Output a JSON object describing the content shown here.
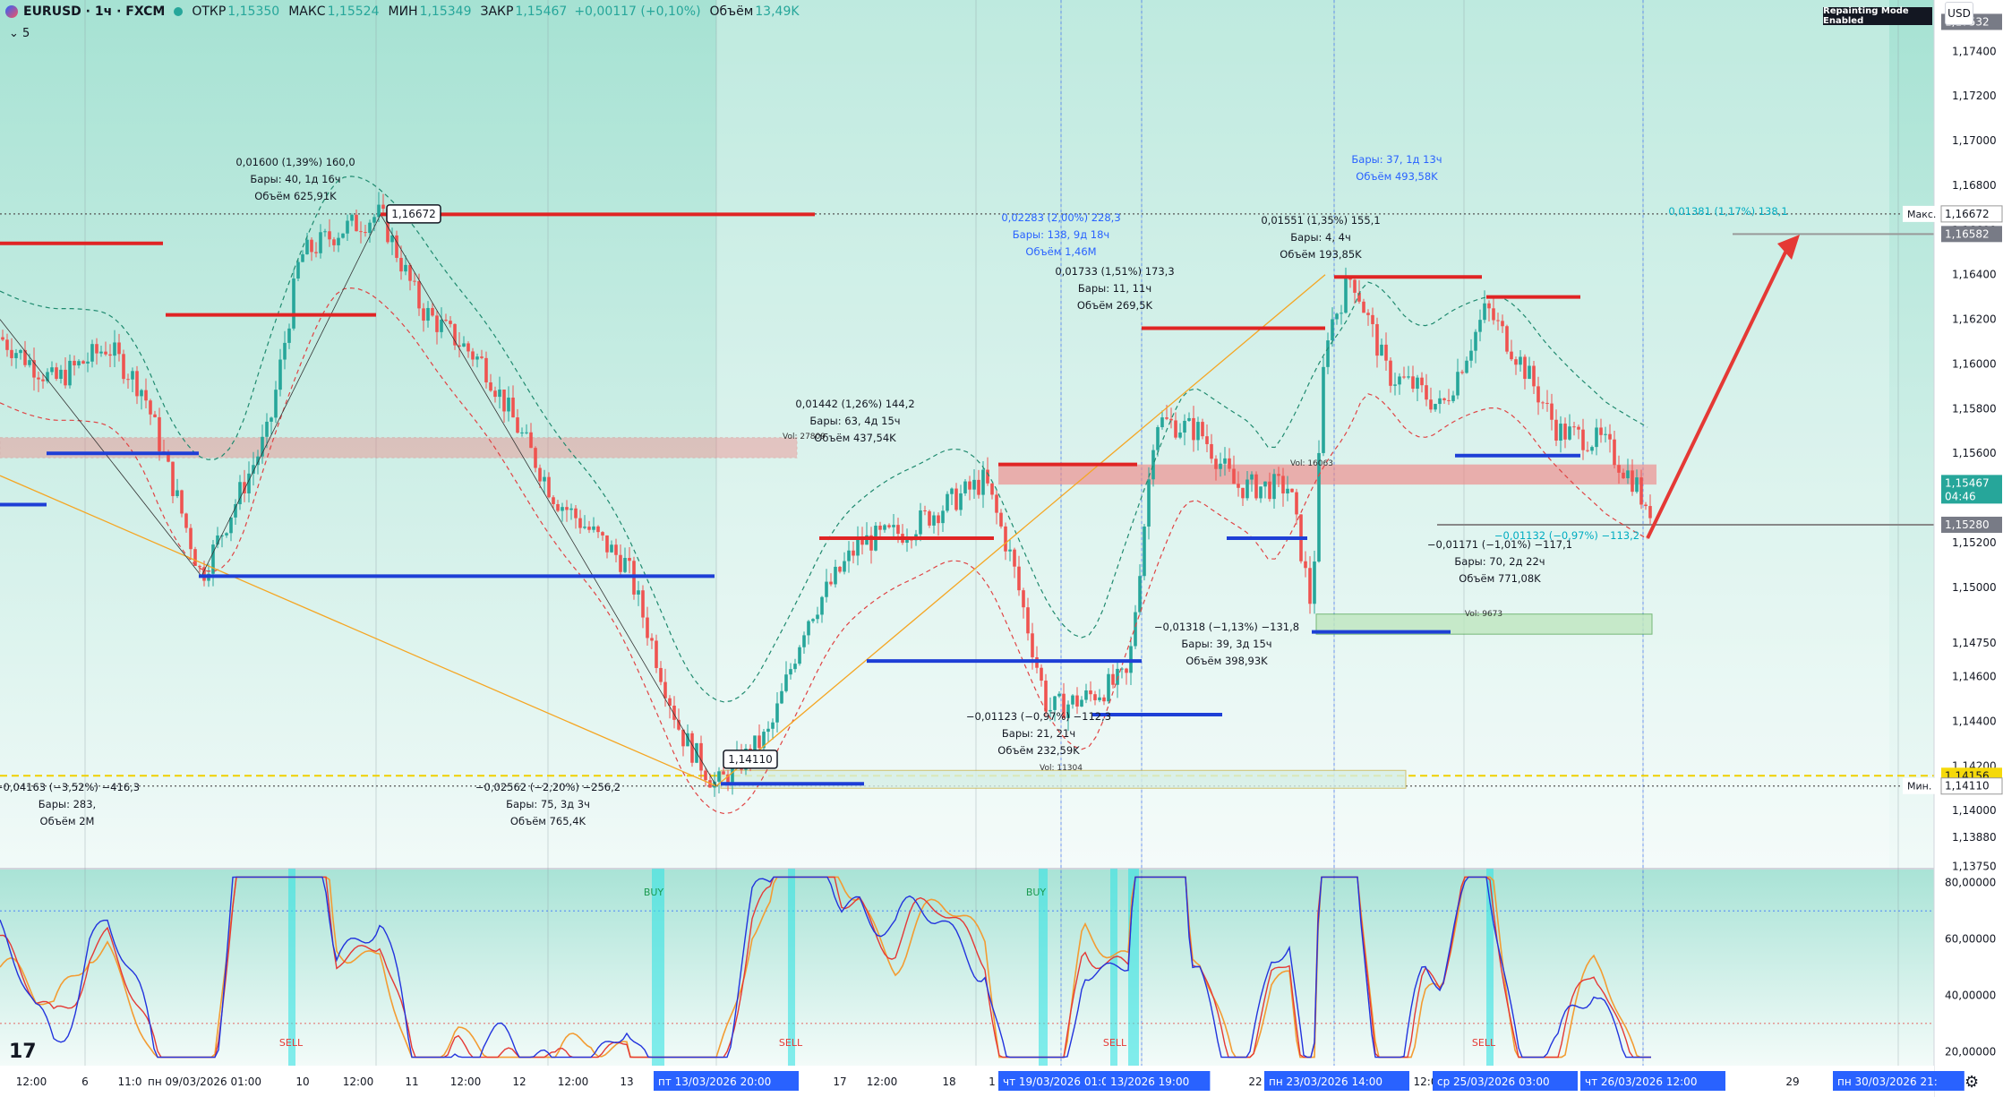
{
  "header": {
    "symbol": "EURUSD · 1ч · FXCM",
    "open_label": "ОТКР",
    "open": "1,15350",
    "high_label": "МАКС",
    "high": "1,15524",
    "low_label": "МИН",
    "low": "1,15349",
    "close_label": "ЗАКР",
    "close": "1,15467",
    "change": "+0,00117 (+0,10%)",
    "volume_label": "Объём",
    "volume": "13,49K",
    "indicators_count": "5"
  },
  "badges": {
    "repainting": "Repainting Mode Enabled",
    "currency": "USD"
  },
  "colors": {
    "bg_top": "#a9e2d4",
    "up": "#26a69a",
    "down": "#ef5350",
    "blue_line": "#1e3fd6",
    "red_line": "#e02424"
  },
  "chart_data": [
    {
      "type": "candlestick",
      "symbol": "EURUSD",
      "timeframe": "1h",
      "price_scale": {
        "ticks": [
          "1,17532",
          "1,17400",
          "1,17200",
          "1,17000",
          "1,16800",
          "1,16600",
          "1,16400",
          "1,16200",
          "1,16000",
          "1,15800",
          "1,15600",
          "1,15400",
          "1,15200",
          "1,15000",
          "1,14750",
          "1,14600",
          "1,14400",
          "1,14200",
          "1,14000",
          "1,13880",
          "1,13750"
        ],
        "badges": [
          {
            "text": "1,17532",
            "kind": "gray"
          },
          {
            "text": "1,16672",
            "kind": "light",
            "side": "Макс."
          },
          {
            "text": "1,16582",
            "kind": "gray"
          },
          {
            "text": "1,15467",
            "kind": "teal",
            "extra": "04:46"
          },
          {
            "text": "1,15280",
            "kind": "gray"
          },
          {
            "text": "1,14156",
            "kind": "yellow"
          },
          {
            "text": "1,14110",
            "kind": "light",
            "side": "Мин."
          }
        ],
        "ylim": [
          1.1374,
          1.1763
        ]
      },
      "key_levels": {
        "max": 1.16672,
        "min": 1.1411,
        "last": 1.15467
      },
      "price_labels": [
        "1,16672",
        "1,14110"
      ],
      "annotations": [
        {
          "lines": [
            "0,01600 (1,39%) 160,0",
            "Бары: 40, 1д 16ч",
            "Объём 625,91K"
          ]
        },
        {
          "lines": [
            "−0,04163 (−3,52%) −416,3",
            "Бары: 283,",
            "Объём 2M"
          ]
        },
        {
          "lines": [
            "−0,02562 (−2,20%) −256,2",
            "Бары: 75, 3д 3ч",
            "Объём 765,4K"
          ]
        },
        {
          "lines": [
            "0,01442 (1,26%) 144,2",
            "Бары: 63, 4д 15ч",
            "Объём 437,54K"
          ]
        },
        {
          "lines": [
            "0,02283 (2,00%) 228,3",
            "Бары: 138, 9д 18ч",
            "Объём 1,46M"
          ],
          "color": "blue"
        },
        {
          "lines": [
            "0,01733 (1,51%) 173,3",
            "Бары: 11, 11ч",
            "Объём 269,5K"
          ]
        },
        {
          "lines": [
            "−0,01123 (−0,97%) −112,3",
            "Бары: 21, 21ч",
            "Объём 232,59K"
          ]
        },
        {
          "lines": [
            "0,01551 (1,35%) 155,1",
            "Бары: 4, 4ч",
            "Объём 193,85K"
          ]
        },
        {
          "lines": [
            "Бары: 37, 1д 13ч",
            "Объём 493,58K"
          ],
          "color": "blue"
        },
        {
          "lines": [
            "−0,01318 (−1,13%) −131,8",
            "Бары: 39, 3д 15ч",
            "Объём 398,93K"
          ]
        },
        {
          "lines": [
            "−0,01171 (−1,01%) −117,1",
            "Бары: 70, 2д 22ч",
            "Объём 771,08K"
          ]
        },
        {
          "lines": [
            "−0,01132 (−0,97%) −113,2"
          ],
          "color": "cyan"
        },
        {
          "lines": [
            "0,01381 (1,17%) 138,1"
          ],
          "color": "cyan"
        }
      ],
      "volume_labels": [
        "Vol: 27809",
        "Vol: 16063",
        "Vol: 9673",
        "Vol: 11304"
      ],
      "oscillator": {
        "ticks": [
          "80,00000",
          "60,00000",
          "40,00000",
          "20,00000"
        ],
        "ylim": [
          15,
          85
        ],
        "signals": [
          "BUY",
          "BUY",
          "SELL",
          "SELL",
          "SELL",
          "SELL"
        ]
      },
      "time_axis": {
        "labels": [
          "12:00",
          "6",
          "11:0",
          "10",
          "12:00",
          "11",
          "12:00",
          "12",
          "12:00",
          "13",
          "17",
          "12:00",
          "18",
          "1",
          "22",
          "12:0",
          "29"
        ],
        "highlighted": [
          "пн 09/03/2026  01:00",
          "пт 13/03/2026  20:00",
          "чт 19/03/2026  01:00",
          "13/2026  19:00",
          "пн 23/03/2026  14:00",
          "ср 25/03/2026  03:00",
          "чт 26/03/2026  12:00",
          "пн 30/03/2026  21:"
        ]
      }
    }
  ]
}
